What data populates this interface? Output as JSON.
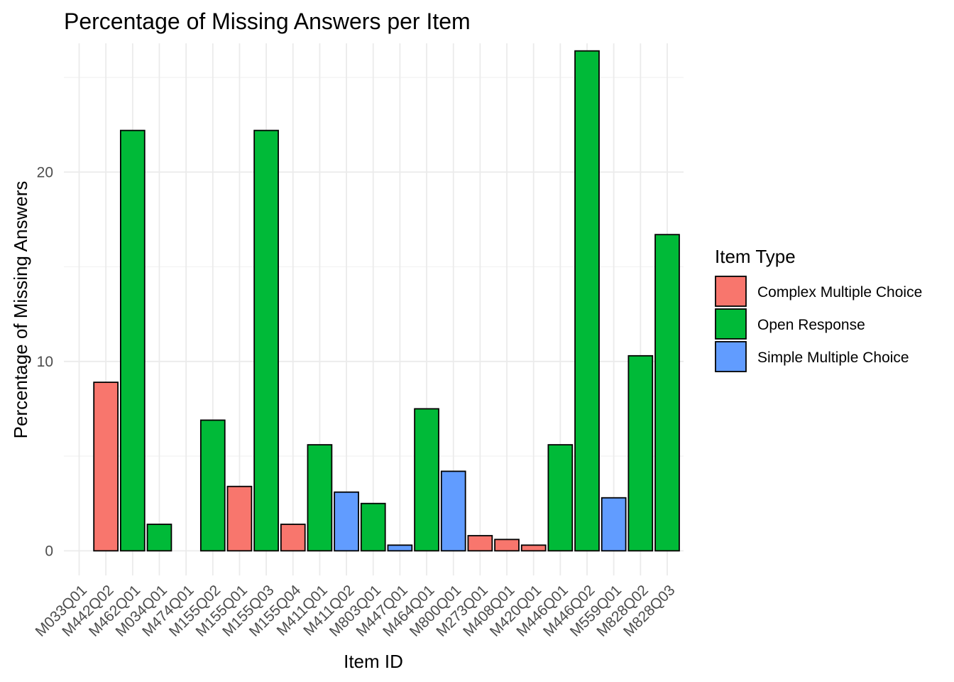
{
  "chart_data": {
    "type": "bar",
    "title": "Percentage of Missing Answers per Item",
    "xlabel": "Item ID",
    "ylabel": "Percentage of Missing Answers",
    "ylim": [
      -1.3,
      26.8
    ],
    "yticks": [
      0,
      10,
      20
    ],
    "grid": true,
    "legend": {
      "title": "Item Type",
      "placement": "right",
      "items": [
        {
          "name": "Complex Multiple Choice",
          "color": "#F8766D"
        },
        {
          "name": "Open Response",
          "color": "#00BA38"
        },
        {
          "name": "Simple Multiple Choice",
          "color": "#619CFF"
        }
      ]
    },
    "categories": [
      "M033Q01",
      "M442Q02",
      "M462Q01",
      "M034Q01",
      "M474Q01",
      "M155Q02",
      "M155Q01",
      "M155Q03",
      "M155Q04",
      "M411Q01",
      "M411Q02",
      "M803Q01",
      "M447Q01",
      "M464Q01",
      "M800Q01",
      "M273Q01",
      "M408Q01",
      "M420Q01",
      "M446Q01",
      "M446Q02",
      "M559Q01",
      "M828Q02",
      "M828Q03"
    ],
    "values": [
      0,
      8.9,
      22.2,
      1.4,
      0,
      6.9,
      3.4,
      22.2,
      1.4,
      5.6,
      3.1,
      2.5,
      0.3,
      7.5,
      4.2,
      0.8,
      0.6,
      0.3,
      5.6,
      26.4,
      2.8,
      10.3,
      16.7
    ],
    "types": [
      "Open Response",
      "Complex Multiple Choice",
      "Open Response",
      "Open Response",
      "Open Response",
      "Open Response",
      "Complex Multiple Choice",
      "Open Response",
      "Complex Multiple Choice",
      "Open Response",
      "Simple Multiple Choice",
      "Open Response",
      "Simple Multiple Choice",
      "Open Response",
      "Simple Multiple Choice",
      "Complex Multiple Choice",
      "Complex Multiple Choice",
      "Complex Multiple Choice",
      "Open Response",
      "Open Response",
      "Simple Multiple Choice",
      "Open Response",
      "Open Response"
    ]
  }
}
